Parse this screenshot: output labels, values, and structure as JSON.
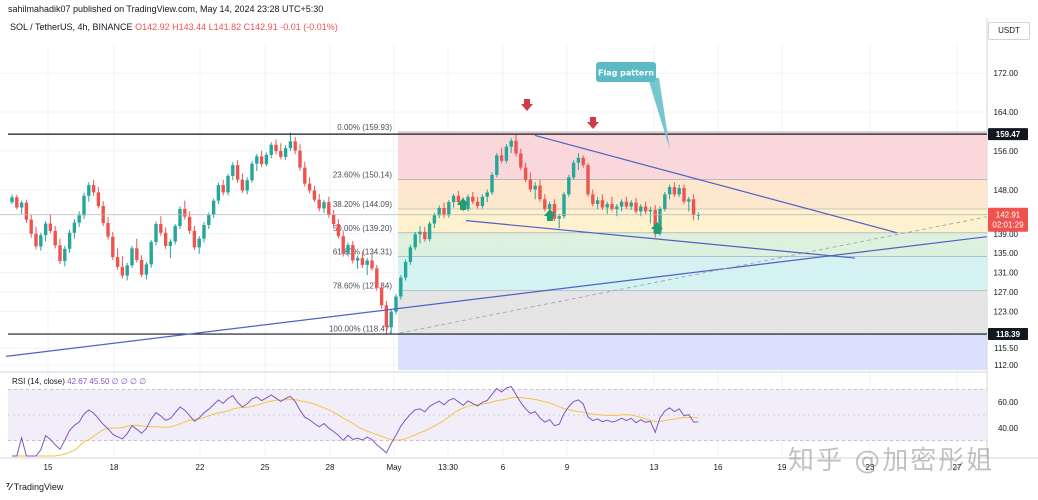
{
  "header": {
    "publish_line": "sahilmahadik07 published on TradingView.com, May 14, 2024 23:28 UTC+5:30",
    "symbol": "SOL / TetherUS, 4h, BINANCE",
    "ohlc": "O142.92 H143.44 L141.82 C142.91 -0.01 (-0.01%)",
    "currency": "USDT"
  },
  "footer": {
    "brand": "TradingView"
  },
  "watermark": "知乎 @加密彤姐",
  "chart_data": {
    "type": "candlestick",
    "price_ticks": [
      "172.00",
      "164.00",
      "156.00",
      "148.00",
      "139.00",
      "135.00",
      "131.00",
      "127.00",
      "123.00",
      "115.50",
      "112.00"
    ],
    "price_tick_values": [
      172,
      164,
      156,
      148,
      139,
      135,
      131,
      127,
      123,
      115.5,
      112
    ],
    "ylim": [
      111,
      178
    ],
    "x_ticks": [
      "15",
      "18",
      "22",
      "25",
      "28",
      "May",
      "13:30",
      "6",
      "9",
      "13",
      "16",
      "19",
      "23",
      "27"
    ],
    "highlight_labels": {
      "resistance": "159.47",
      "support": "118.39",
      "last_price": "142.91",
      "countdown": "02:01:29"
    },
    "fib_levels": [
      {
        "label": "0.00% (159.93)",
        "price": 159.93,
        "color": "#f8d0d4"
      },
      {
        "label": "23.60% (150.14)",
        "price": 150.14,
        "color": "#fde3c6"
      },
      {
        "label": "38.20% (144.09)",
        "price": 144.09,
        "color": "#fdf0c4"
      },
      {
        "label": "50.00% (139.20)",
        "price": 139.2,
        "color": "#d7eed8"
      },
      {
        "label": "61.80% (134.31)",
        "price": 134.31,
        "color": "#cdf0f0"
      },
      {
        "label": "78.60% (127.34)",
        "price": 127.34,
        "color": "#e1e1e1"
      },
      {
        "label": "100.00% (118.47)",
        "price": 118.47,
        "color": "#d4dcfc"
      }
    ],
    "annotation": "Flag pattern",
    "rsi": {
      "label": "RSI (14, close)",
      "values": "42.67 45.50 ∅ ∅ ∅ ∅",
      "ticks": [
        "60.00",
        "40.00"
      ],
      "tick_values": [
        60,
        40
      ],
      "ylim": [
        18,
        82
      ],
      "bands": [
        70,
        30
      ]
    },
    "candles": [
      [
        145.5,
        147.1,
        145.1,
        146.5
      ],
      [
        146.5,
        147.0,
        144.0,
        144.4
      ],
      [
        144.4,
        145.8,
        143.1,
        145.4
      ],
      [
        145.4,
        146.0,
        141.2,
        141.9
      ],
      [
        141.9,
        143.0,
        138.2,
        139.0
      ],
      [
        139.0,
        140.5,
        135.8,
        136.4
      ],
      [
        136.4,
        139.2,
        135.5,
        138.7
      ],
      [
        138.7,
        141.6,
        137.4,
        141.1
      ],
      [
        141.1,
        143.0,
        139.1,
        139.6
      ],
      [
        139.6,
        140.6,
        136.0,
        136.6
      ],
      [
        136.6,
        138.0,
        132.8,
        133.4
      ],
      [
        133.4,
        136.5,
        132.3,
        135.9
      ],
      [
        135.9,
        139.8,
        135.1,
        139.2
      ],
      [
        139.2,
        142.0,
        138.0,
        141.3
      ],
      [
        141.3,
        143.6,
        140.4,
        142.8
      ],
      [
        142.8,
        147.4,
        142.0,
        146.8
      ],
      [
        146.8,
        149.6,
        145.6,
        149.0
      ],
      [
        149.0,
        150.1,
        146.8,
        147.5
      ],
      [
        147.5,
        148.6,
        144.2,
        144.7
      ],
      [
        144.7,
        145.7,
        140.6,
        141.2
      ],
      [
        141.2,
        142.5,
        137.8,
        138.4
      ],
      [
        138.4,
        139.4,
        133.6,
        134.2
      ],
      [
        134.2,
        136.0,
        131.6,
        132.2
      ],
      [
        132.2,
        134.4,
        129.8,
        130.4
      ],
      [
        130.4,
        133.0,
        129.4,
        132.5
      ],
      [
        132.5,
        136.5,
        132.0,
        136.0
      ],
      [
        136.0,
        138.0,
        133.1,
        133.6
      ],
      [
        133.6,
        134.6,
        130.1,
        130.6
      ],
      [
        130.6,
        133.2,
        129.6,
        132.7
      ],
      [
        132.7,
        137.7,
        132.0,
        137.3
      ],
      [
        137.3,
        141.5,
        136.6,
        141.0
      ],
      [
        141.0,
        142.6,
        138.6,
        139.2
      ],
      [
        139.2,
        140.3,
        135.9,
        136.5
      ],
      [
        136.5,
        137.9,
        134.0,
        137.4
      ],
      [
        137.4,
        141.0,
        136.8,
        140.6
      ],
      [
        140.6,
        144.6,
        140.0,
        144.1
      ],
      [
        144.1,
        145.8,
        141.9,
        142.5
      ],
      [
        142.5,
        143.6,
        139.0,
        139.6
      ],
      [
        139.6,
        140.6,
        135.7,
        136.2
      ],
      [
        136.2,
        138.5,
        134.9,
        138.0
      ],
      [
        138.0,
        141.4,
        137.2,
        140.8
      ],
      [
        140.8,
        143.4,
        140.0,
        142.9
      ],
      [
        142.9,
        146.2,
        142.3,
        145.8
      ],
      [
        145.8,
        149.5,
        145.1,
        149.0
      ],
      [
        149.0,
        150.1,
        146.9,
        147.5
      ],
      [
        147.5,
        151.3,
        146.9,
        150.9
      ],
      [
        150.9,
        153.7,
        150.0,
        153.1
      ],
      [
        153.1,
        154.1,
        149.5,
        150.1
      ],
      [
        150.1,
        151.4,
        147.4,
        147.9
      ],
      [
        147.9,
        150.6,
        147.1,
        150.0
      ],
      [
        150.0,
        153.9,
        149.5,
        153.4
      ],
      [
        153.4,
        155.4,
        151.9,
        154.9
      ],
      [
        154.9,
        156.1,
        152.7,
        153.3
      ],
      [
        153.3,
        155.7,
        152.9,
        155.2
      ],
      [
        155.2,
        157.8,
        154.5,
        157.3
      ],
      [
        157.3,
        158.4,
        155.3,
        156.0
      ],
      [
        156.0,
        157.6,
        154.3,
        154.8
      ],
      [
        154.8,
        157.2,
        154.2,
        156.6
      ],
      [
        156.6,
        159.8,
        156.0,
        158.0
      ],
      [
        158.0,
        158.9,
        155.4,
        156.1
      ],
      [
        156.1,
        157.4,
        152.0,
        152.6
      ],
      [
        152.6,
        153.8,
        148.7,
        149.3
      ],
      [
        149.3,
        150.6,
        147.3,
        147.9
      ],
      [
        147.9,
        148.9,
        145.5,
        146.0
      ],
      [
        146.0,
        147.2,
        143.6,
        144.2
      ],
      [
        144.2,
        146.0,
        143.3,
        145.5
      ],
      [
        145.5,
        146.6,
        142.3,
        142.9
      ],
      [
        142.9,
        143.9,
        140.5,
        141.0
      ],
      [
        141.0,
        142.0,
        138.0,
        138.5
      ],
      [
        138.5,
        139.5,
        134.3,
        134.9
      ],
      [
        134.9,
        137.2,
        134.3,
        136.7
      ],
      [
        136.7,
        137.5,
        132.9,
        133.5
      ],
      [
        133.5,
        134.5,
        131.8,
        134.0
      ],
      [
        134.0,
        135.4,
        132.0,
        132.6
      ],
      [
        132.6,
        134.0,
        130.5,
        133.5
      ],
      [
        133.5,
        135.0,
        131.4,
        131.9
      ],
      [
        131.9,
        132.6,
        127.3,
        127.9
      ],
      [
        127.9,
        128.8,
        123.6,
        124.3
      ],
      [
        124.3,
        125.2,
        118.5,
        119.8
      ],
      [
        119.8,
        123.6,
        118.5,
        123.0
      ],
      [
        123.0,
        126.6,
        122.4,
        126.1
      ],
      [
        126.1,
        130.5,
        125.5,
        130.0
      ],
      [
        130.0,
        133.7,
        129.4,
        133.2
      ],
      [
        133.2,
        136.7,
        132.6,
        136.2
      ],
      [
        136.2,
        139.4,
        135.6,
        138.9
      ],
      [
        138.9,
        140.6,
        137.0,
        139.4
      ],
      [
        139.4,
        140.4,
        137.4,
        137.9
      ],
      [
        137.9,
        141.5,
        137.4,
        141.1
      ],
      [
        141.1,
        143.3,
        140.2,
        142.8
      ],
      [
        142.8,
        144.8,
        142.2,
        144.3
      ],
      [
        144.3,
        145.4,
        142.3,
        142.8
      ],
      [
        142.8,
        145.9,
        142.3,
        145.5
      ],
      [
        145.5,
        147.2,
        144.4,
        146.8
      ],
      [
        146.8,
        147.8,
        145.0,
        145.5
      ],
      [
        145.5,
        146.5,
        143.6,
        144.1
      ],
      [
        144.1,
        147.1,
        143.6,
        146.6
      ],
      [
        146.6,
        147.6,
        145.1,
        145.6
      ],
      [
        145.6,
        146.6,
        144.2,
        144.7
      ],
      [
        144.7,
        147.1,
        144.2,
        146.6
      ],
      [
        146.6,
        148.1,
        145.5,
        147.5
      ],
      [
        147.5,
        151.6,
        147.0,
        151.1
      ],
      [
        151.1,
        155.6,
        150.6,
        155.1
      ],
      [
        155.1,
        156.6,
        153.5,
        154.0
      ],
      [
        154.0,
        157.4,
        153.5,
        156.9
      ],
      [
        156.9,
        158.6,
        155.6,
        158.1
      ],
      [
        158.1,
        159.3,
        154.9,
        155.5
      ],
      [
        155.5,
        156.5,
        152.1,
        152.6
      ],
      [
        152.6,
        153.6,
        149.6,
        150.1
      ],
      [
        150.1,
        151.6,
        147.6,
        148.1
      ],
      [
        148.1,
        149.6,
        146.1,
        148.9
      ],
      [
        148.9,
        150.1,
        145.6,
        146.1
      ],
      [
        146.1,
        147.1,
        143.6,
        144.1
      ],
      [
        144.1,
        145.6,
        142.6,
        145.1
      ],
      [
        145.1,
        146.1,
        141.6,
        142.1
      ],
      [
        142.1,
        143.1,
        140.1,
        142.6
      ],
      [
        142.6,
        147.6,
        142.1,
        147.1
      ],
      [
        147.1,
        151.1,
        146.6,
        150.6
      ],
      [
        150.6,
        154.1,
        150.1,
        153.6
      ],
      [
        153.6,
        155.6,
        152.1,
        154.6
      ],
      [
        154.6,
        155.1,
        152.6,
        153.1
      ],
      [
        153.1,
        153.6,
        146.6,
        147.1
      ],
      [
        147.1,
        148.1,
        144.6,
        145.1
      ],
      [
        145.1,
        146.6,
        144.1,
        145.9
      ],
      [
        145.9,
        147.1,
        143.9,
        144.4
      ],
      [
        144.4,
        145.6,
        143.1,
        145.1
      ],
      [
        145.1,
        146.6,
        143.6,
        144.1
      ],
      [
        144.1,
        145.1,
        142.6,
        144.6
      ],
      [
        144.6,
        146.1,
        143.6,
        145.6
      ],
      [
        145.6,
        146.6,
        144.1,
        144.6
      ],
      [
        144.6,
        145.9,
        143.9,
        145.4
      ],
      [
        145.4,
        146.4,
        143.1,
        143.6
      ],
      [
        143.6,
        145.1,
        142.6,
        144.6
      ],
      [
        144.6,
        145.6,
        143.1,
        143.6
      ],
      [
        143.6,
        144.6,
        141.1,
        143.9
      ],
      [
        143.9,
        144.9,
        138.2,
        139.1
      ],
      [
        139.1,
        144.6,
        138.6,
        144.1
      ],
      [
        144.1,
        147.6,
        143.6,
        147.1
      ],
      [
        147.1,
        149.1,
        146.1,
        148.6
      ],
      [
        148.6,
        149.6,
        146.6,
        147.1
      ],
      [
        147.1,
        149.1,
        146.6,
        148.4
      ],
      [
        148.4,
        149.1,
        145.1,
        145.6
      ],
      [
        145.6,
        146.6,
        143.6,
        146.1
      ],
      [
        146.1,
        147.1,
        141.8,
        142.9
      ],
      [
        142.9,
        143.4,
        141.8,
        142.9
      ]
    ]
  }
}
